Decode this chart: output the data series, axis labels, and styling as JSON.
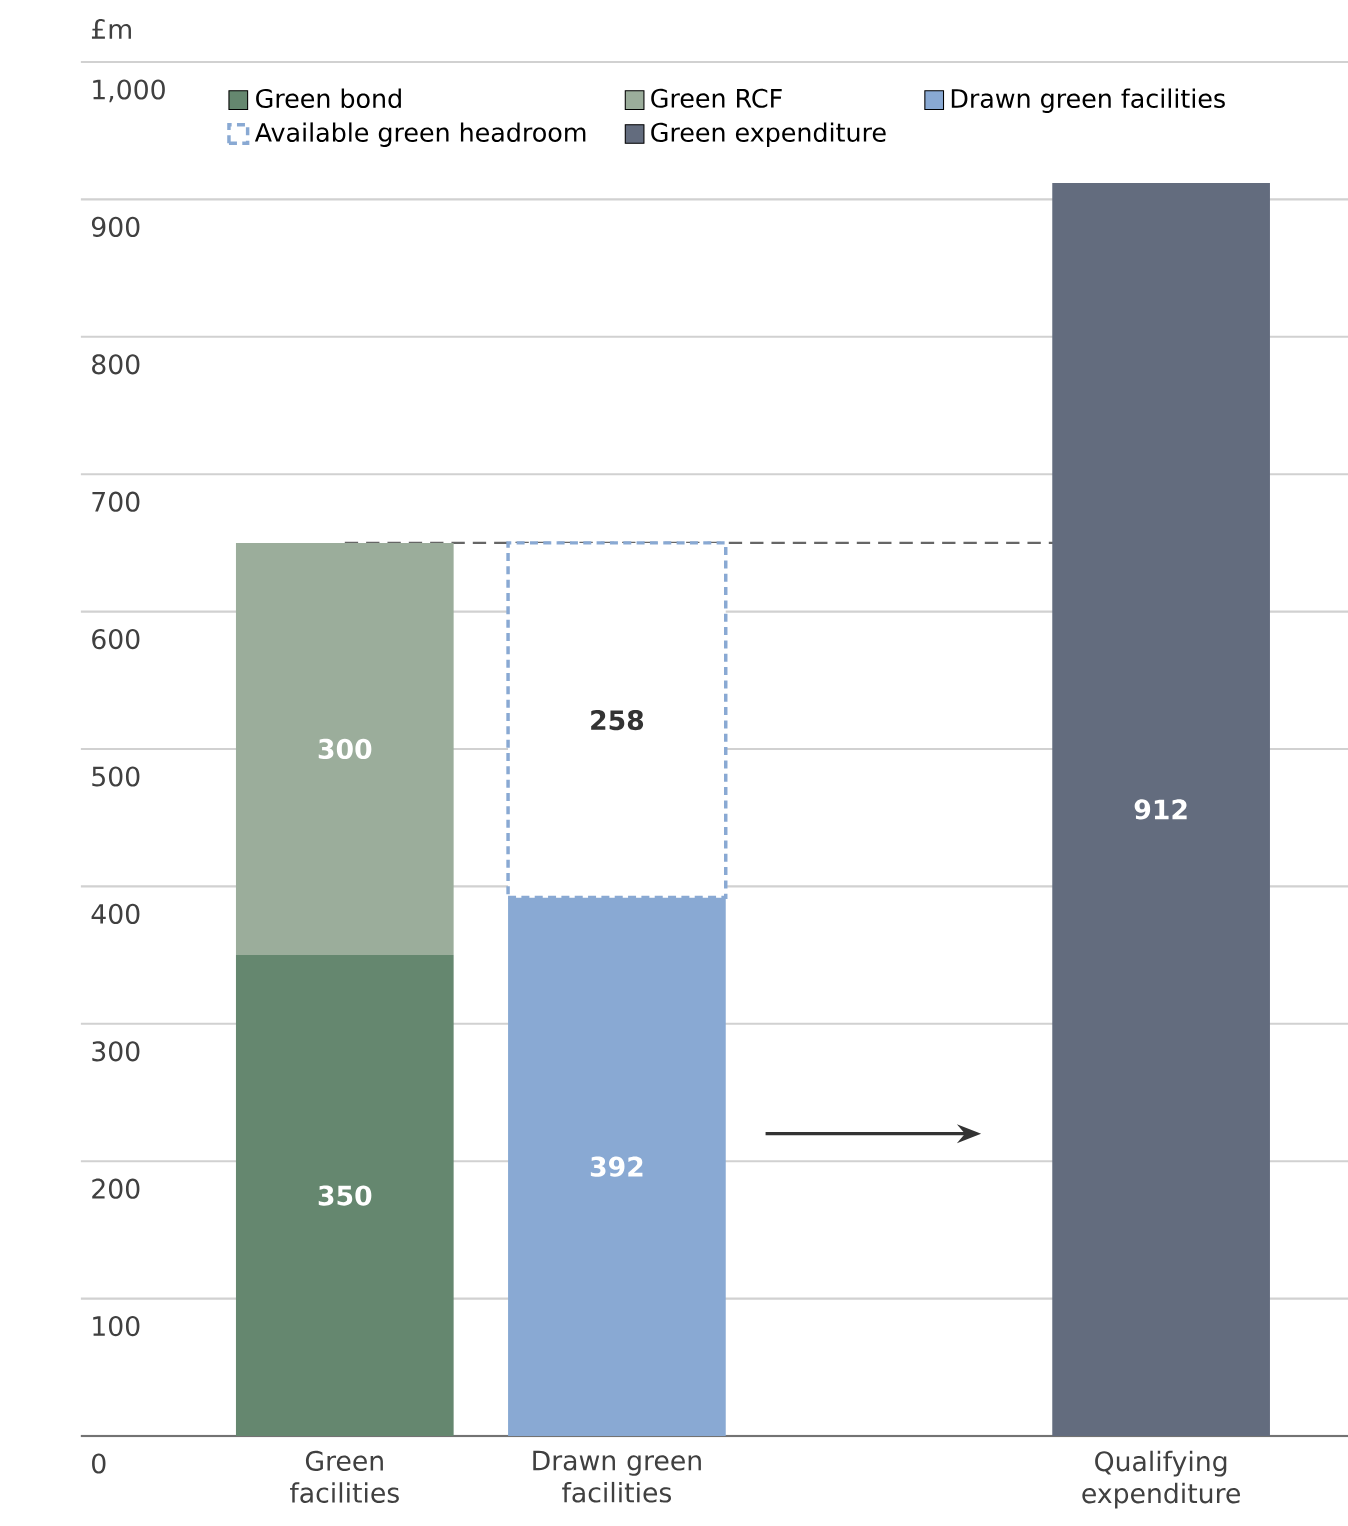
{
  "chart_data": {
    "type": "bar",
    "stacked": true,
    "ylabel": "£m",
    "categories": [
      "Green facilities",
      "Drawn green facilities",
      null,
      "Qualifying expenditure"
    ],
    "series": [
      {
        "name": "Green bond",
        "color": "#65876f",
        "values": [
          350,
          null,
          null,
          null
        ]
      },
      {
        "name": "Green RCF",
        "color": "#9bad9b",
        "values": [
          300,
          null,
          null,
          null
        ]
      },
      {
        "name": "Drawn green facilities",
        "color": "#89a9d3",
        "values": [
          null,
          392,
          null,
          null
        ]
      },
      {
        "name": "Available green headroom",
        "color": "#89a9d3",
        "line_style": "dashed",
        "values": [
          null,
          258,
          null,
          null
        ]
      },
      {
        "name": "Green expenditure",
        "color": "#636c7e",
        "values": [
          null,
          null,
          null,
          912
        ]
      }
    ],
    "ylim": [
      0,
      1000
    ],
    "yticks": [
      0,
      100,
      200,
      300,
      400,
      500,
      600,
      700,
      800,
      900,
      {
        "value": 1000,
        "label": "1,000"
      }
    ],
    "grid": "y",
    "legend": "top",
    "data_labels": true,
    "ref_lines": [
      {
        "axis": "y",
        "value": 650,
        "color": "#666666",
        "line_style": "dashed"
      }
    ]
  }
}
